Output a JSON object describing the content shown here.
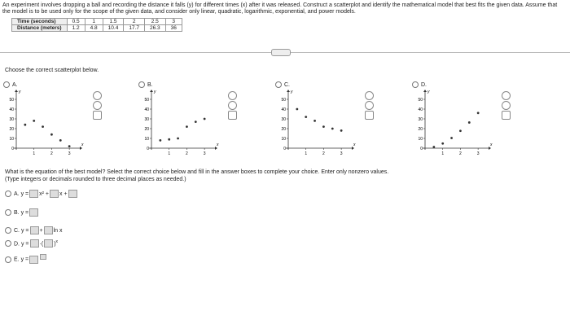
{
  "problem": {
    "text": "An experiment involves dropping a ball and recording the distance it falls (y) for different times (x) after it was released. Construct a scatterplot and identify the mathematical model that best fits the given data. Assume that the model is to be used only for the scope of the given data, and consider only linear, quadratic, logarithmic, exponential, and power models.",
    "table": {
      "rows": [
        [
          "Time (seconds)",
          0.5,
          1,
          1.5,
          2,
          2.5,
          3
        ],
        [
          "Distance (meters)",
          1.2,
          4.8,
          10.4,
          17.7,
          26.3,
          36
        ]
      ]
    }
  },
  "prompt": "Choose the correct scatterplot below.",
  "plot_axes": {
    "xlim": [
      0,
      3.5
    ],
    "ylim": [
      0,
      55
    ],
    "xticks": [
      1,
      2,
      3
    ],
    "yticks": [
      0,
      10,
      20,
      30,
      40,
      50
    ],
    "x_label": "x",
    "y_label": "y"
  },
  "plots": [
    {
      "option": "A.",
      "x": [
        0.5,
        1,
        1.5,
        2,
        2.5,
        3
      ],
      "y": [
        24,
        28,
        22,
        14,
        8,
        2
      ]
    },
    {
      "option": "B.",
      "x": [
        0.5,
        1,
        1.5,
        2,
        2.5,
        3
      ],
      "y": [
        8,
        9,
        10,
        22,
        27,
        30
      ]
    },
    {
      "option": "C.",
      "x": [
        0.5,
        1,
        1.5,
        2,
        2.5,
        3
      ],
      "y": [
        40,
        32,
        28,
        22,
        20,
        18
      ]
    },
    {
      "option": "D.",
      "x": [
        0.5,
        1,
        1.5,
        2,
        2.5,
        3
      ],
      "y": [
        1.2,
        4.8,
        10.4,
        17.7,
        26.3,
        36
      ]
    }
  ],
  "question": "What is the equation of the best model? Select the correct choice below and fill in the answer boxes to complete your choice. Enter only nonzero values.",
  "note": "(Type integers or decimals rounded to three decimal places as needed.)",
  "choices": [
    {
      "option": "A.",
      "parts": [
        "y =",
        "x² +",
        "x +"
      ]
    },
    {
      "option": "B.",
      "parts": [
        "y ="
      ]
    },
    {
      "option": "C.",
      "parts": [
        "y =",
        "+",
        "ln x"
      ]
    },
    {
      "option": "D.",
      "parts": [
        "y =",
        "·"
      ]
    },
    {
      "option": "E.",
      "parts": [
        "y ="
      ]
    }
  ]
}
